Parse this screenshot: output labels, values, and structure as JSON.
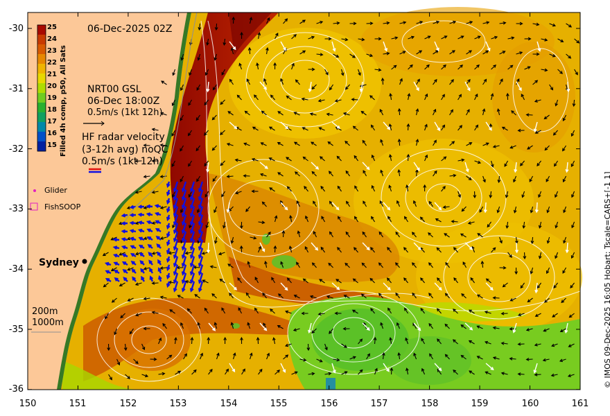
{
  "title": "06-Dec-2025 02Z",
  "colorbar": {
    "label": "Filled 4h comp, p50, All Sats",
    "ticks": [
      "25",
      "24",
      "23",
      "22",
      "21",
      "20",
      "19",
      "18",
      "17",
      "16",
      "15"
    ],
    "colors": [
      "#a80a00",
      "#c83a00",
      "#d85a00",
      "#e88800",
      "#f0b400",
      "#e8d800",
      "#b0dc00",
      "#70cc20",
      "#28b030",
      "#10a060",
      "#0088a8",
      "#0050c8",
      "#0020a0"
    ]
  },
  "legend": {
    "nrt_title": "NRT00 GSL",
    "nrt_time": "06-Dec 18:00Z",
    "nrt_scale": "0.5m/s (1kt 12h)",
    "hf_title": "HF radar velocity",
    "hf_avg": "(3-12h avg) noQC",
    "hf_scale": "0.5m/s (1kt 12h)",
    "glider": "Glider",
    "fishsoop": "FishSOOP",
    "city": "Sydney",
    "depth1": "200m",
    "depth2": "1000m"
  },
  "axes": {
    "y_ticks": [
      "-30",
      "-31",
      "-32",
      "-33",
      "-34",
      "-35",
      "-36"
    ],
    "x_ticks": [
      "150",
      "151",
      "152",
      "153",
      "154",
      "155",
      "156",
      "157",
      "158",
      "159",
      "160",
      "161"
    ]
  },
  "credit": "© IMOS 09-Dec-2025 16:05 Hobart; Tscale=CARS+[-1 1]",
  "colors": {
    "land": "#fcc898",
    "ocean_warm": "#e6b000",
    "ocean_hot": "#a80a00",
    "cool": "#6cc828",
    "contour": "#ffffff",
    "hf": "#1010e0"
  }
}
